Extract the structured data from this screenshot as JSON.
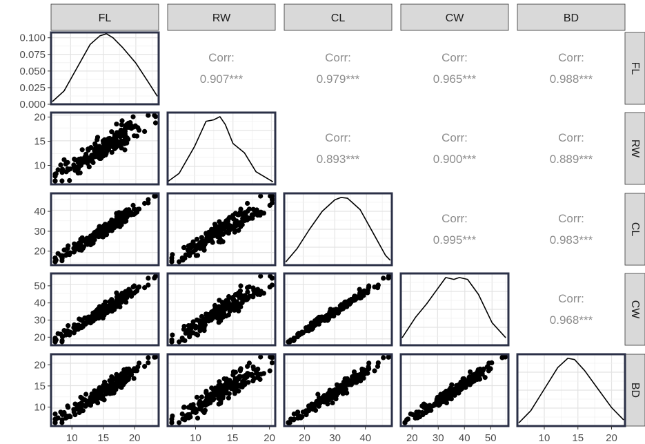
{
  "chart_data": {
    "type": "scatter",
    "subtype": "pairs-matrix",
    "variables": [
      "FL",
      "RW",
      "CL",
      "CW",
      "BD"
    ],
    "ranges": {
      "FL": [
        7,
        23.5
      ],
      "RW": [
        6.5,
        20.5
      ],
      "CL": [
        14,
        48
      ],
      "CW": [
        16.5,
        56
      ],
      "BD": [
        6,
        22
      ]
    },
    "ticks": {
      "FL": [
        10,
        15,
        20
      ],
      "RW": [
        10,
        15,
        20
      ],
      "CL": [
        20,
        30,
        40
      ],
      "CW": [
        20,
        30,
        40,
        50
      ],
      "BD": [
        10,
        15,
        20
      ]
    },
    "density_axis": {
      "ticks": [
        0.0,
        0.025,
        0.05,
        0.075,
        0.1
      ],
      "tick_labels": [
        "0.000",
        "0.025",
        "0.050",
        "0.075",
        "0.100"
      ],
      "ylim": [
        0,
        0.108
      ]
    },
    "corr_label": "Corr:",
    "correlations": [
      {
        "row": "FL",
        "col": "RW",
        "value": "0.907***"
      },
      {
        "row": "FL",
        "col": "CL",
        "value": "0.979***"
      },
      {
        "row": "FL",
        "col": "CW",
        "value": "0.965***"
      },
      {
        "row": "FL",
        "col": "BD",
        "value": "0.988***"
      },
      {
        "row": "RW",
        "col": "CL",
        "value": "0.893***"
      },
      {
        "row": "RW",
        "col": "CW",
        "value": "0.900***"
      },
      {
        "row": "RW",
        "col": "BD",
        "value": "0.889***"
      },
      {
        "row": "CL",
        "col": "CW",
        "value": "0.995***"
      },
      {
        "row": "CL",
        "col": "BD",
        "value": "0.983***"
      },
      {
        "row": "CW",
        "col": "BD",
        "value": "0.968***"
      }
    ],
    "densities": {
      "FL": {
        "x": [
          7.2,
          9,
          11,
          13,
          14.5,
          15.5,
          16.5,
          18,
          20,
          22,
          23.3
        ],
        "y": [
          0.004,
          0.02,
          0.055,
          0.09,
          0.103,
          0.106,
          0.1,
          0.085,
          0.062,
          0.032,
          0.012
        ]
      },
      "RW": {
        "x": [
          6.6,
          8,
          10,
          11.5,
          12.5,
          13.3,
          14,
          15,
          16.5,
          18,
          20.2
        ],
        "y": [
          0.01,
          0.035,
          0.12,
          0.2,
          0.205,
          0.215,
          0.19,
          0.13,
          0.1,
          0.04,
          0.008
        ]
      },
      "CL": {
        "x": [
          14.5,
          18,
          22,
          26,
          30,
          32,
          34,
          38,
          42,
          46,
          47.5
        ],
        "y": [
          0.002,
          0.01,
          0.022,
          0.033,
          0.04,
          0.0415,
          0.041,
          0.034,
          0.02,
          0.006,
          0.003
        ]
      },
      "CW": {
        "x": [
          17,
          22,
          26,
          30,
          33,
          36,
          38,
          41,
          45,
          50,
          55
        ],
        "y": [
          0.004,
          0.015,
          0.022,
          0.03,
          0.036,
          0.035,
          0.036,
          0.035,
          0.027,
          0.012,
          0.004
        ]
      },
      "BD": {
        "x": [
          6.2,
          8,
          10,
          12,
          13.5,
          14.5,
          16,
          18,
          20,
          21.8
        ],
        "y": [
          0.005,
          0.025,
          0.06,
          0.095,
          0.11,
          0.108,
          0.09,
          0.06,
          0.03,
          0.01
        ]
      }
    },
    "grid": true
  }
}
